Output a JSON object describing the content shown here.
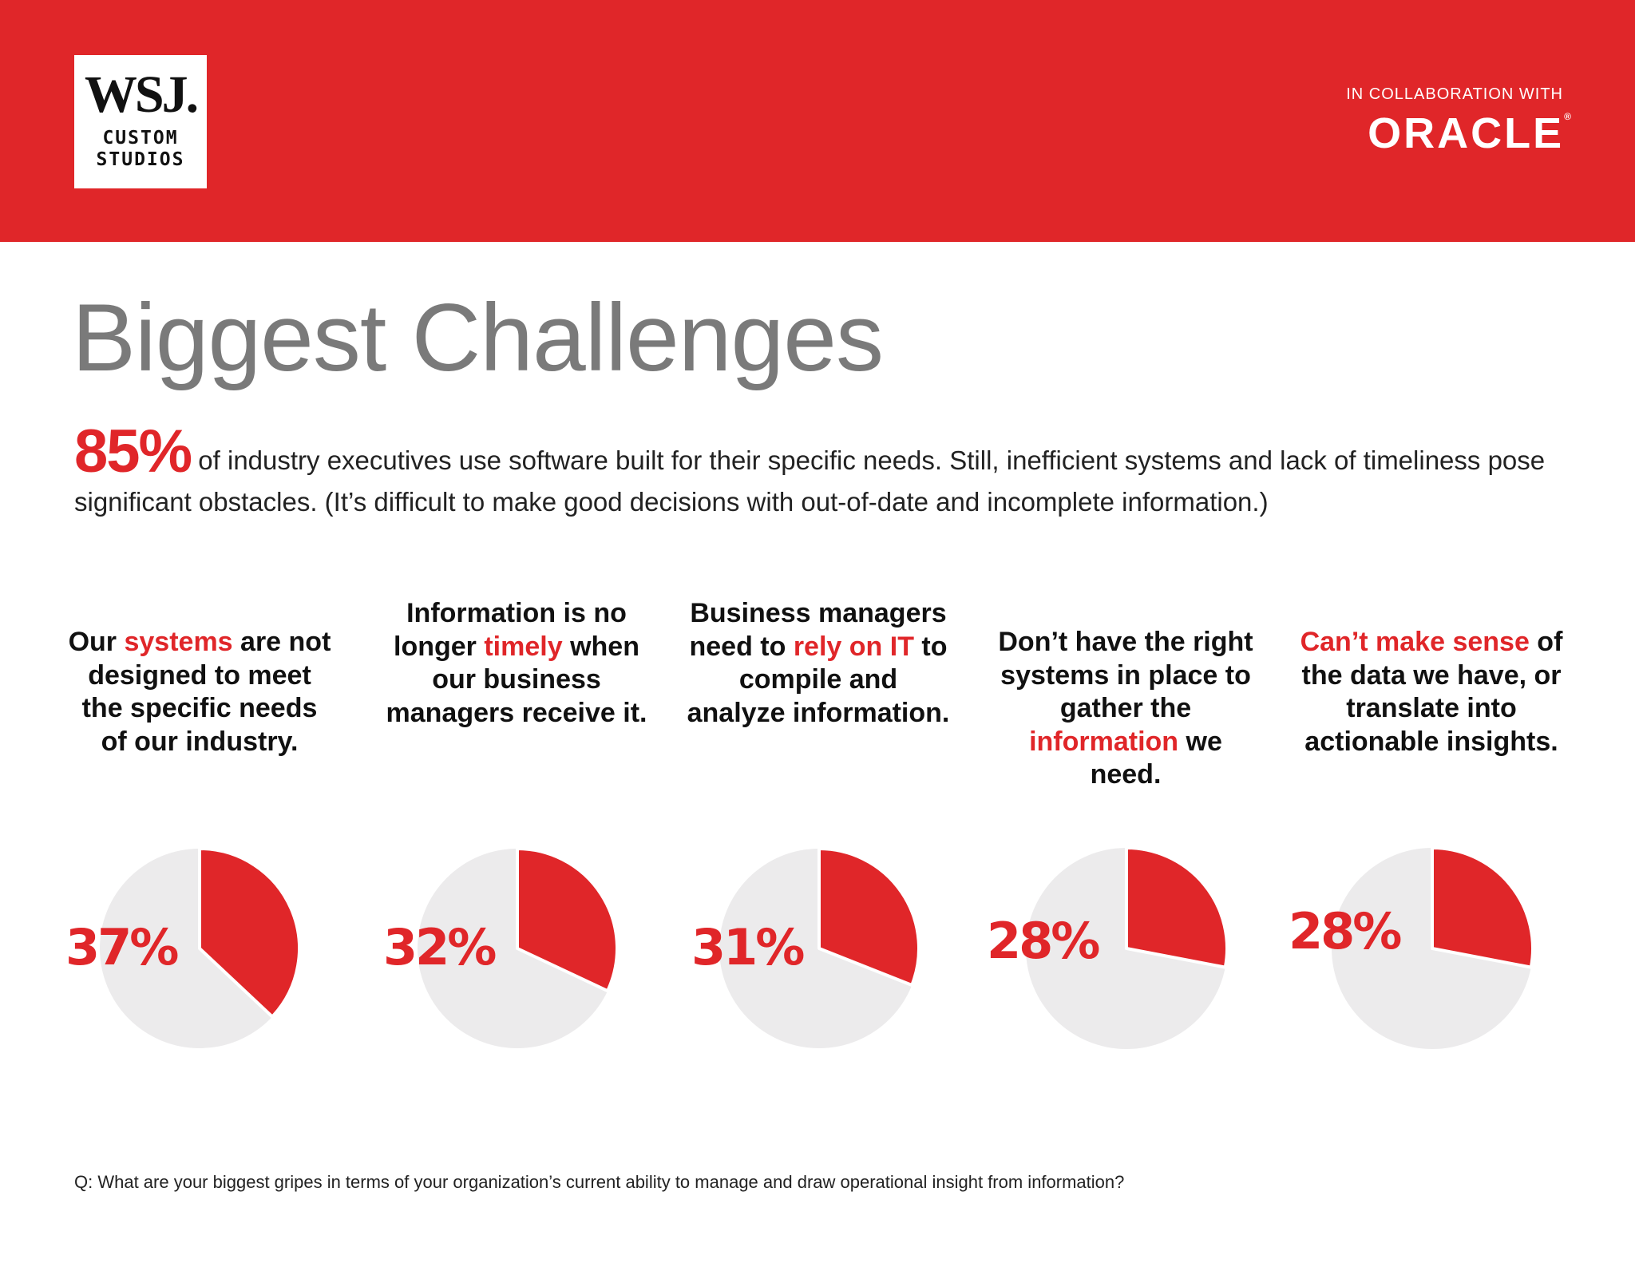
{
  "header": {
    "logo_wsj": "WSJ.",
    "logo_line1": "CUSTOM",
    "logo_line2": "STUDIOS",
    "collab_label": "IN COLLABORATION WITH",
    "partner": "ORACLE",
    "partner_mark": "®"
  },
  "title": "Biggest Challenges",
  "intro": {
    "stat": "85%",
    "text": "of industry executives use software built for their specific needs. Still, inefficient systems and lack of timeliness pose significant obstacles. (It’s difficult to make good decisions with out-of-date and incomplete information.)"
  },
  "cards": [
    {
      "p1": "Our ",
      "r": "systems",
      "p2": " are not designed to meet the specific needs of our industry."
    },
    {
      "p1": "Information is no longer ",
      "r": "timely",
      "p2": " when our business managers receive it."
    },
    {
      "p1": "Business managers need to ",
      "r": "rely on IT",
      "p2": " to compile and analyze information."
    },
    {
      "p1": "Don’t have the right systems in place to gather the ",
      "r": "information",
      "p2": " we need."
    },
    {
      "p1": "",
      "r": "Can’t make sense",
      "p2": " of the data we have, or translate into actionable insights."
    }
  ],
  "chart_data": {
    "type": "pie",
    "categories": [
      "Our systems are not designed to meet the specific needs of our industry.",
      "Information is no longer timely when our business managers receive it.",
      "Business managers need to rely on IT to compile and analyze information.",
      "Don’t have the right systems in place to gather the information we need.",
      "Can’t make sense of the data we have, or translate into actionable insights."
    ],
    "values": [
      37,
      32,
      31,
      28,
      28
    ],
    "labels": [
      "37%",
      "32%",
      "31%",
      "28%",
      "28%"
    ],
    "unit": "%",
    "colors": {
      "highlight": "#e02629",
      "remainder": "#ecebec"
    }
  },
  "question": "Q: What are your biggest gripes in terms of your organization’s current ability to manage and draw operational insight from information?"
}
